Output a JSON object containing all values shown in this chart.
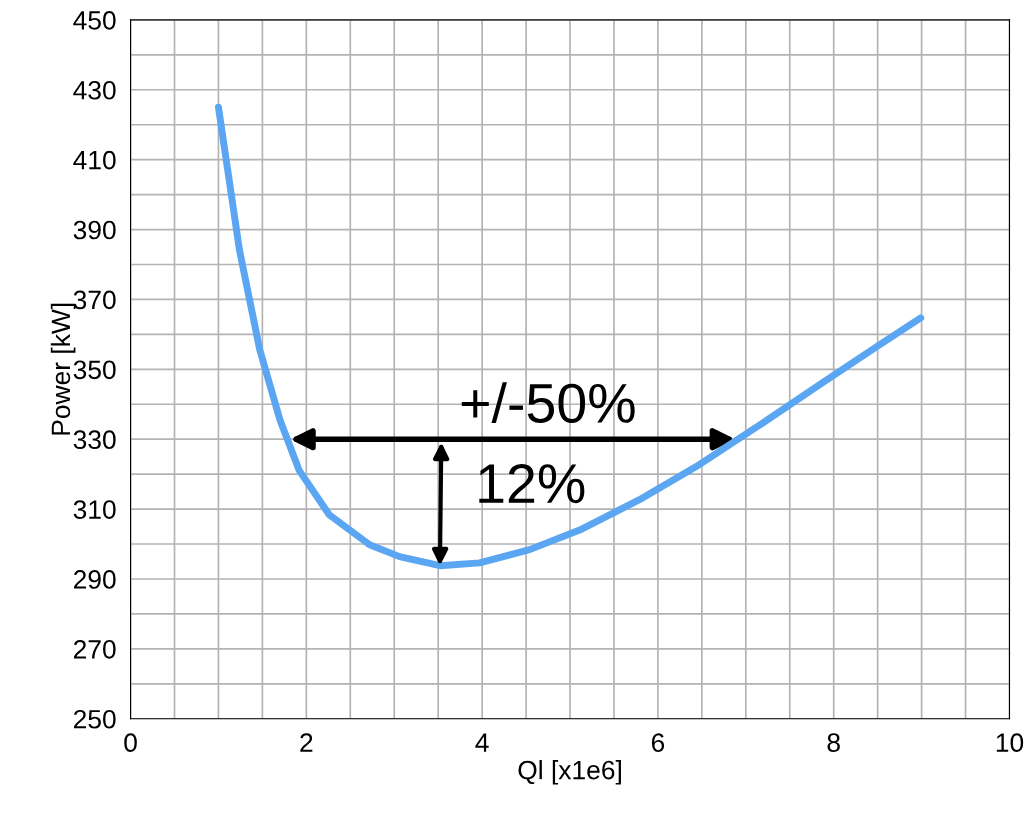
{
  "chart_data": {
    "type": "line",
    "xlabel": "Ql [x1e6]",
    "ylabel": "Power [kW]",
    "x": [
      1.0,
      1.24,
      1.47,
      1.7,
      1.92,
      2.26,
      2.72,
      3.06,
      3.52,
      3.97,
      4.54,
      5.11,
      5.79,
      6.47,
      7.16,
      7.84,
      8.52,
      8.99
    ],
    "series": [
      {
        "color": "#5ba6f2",
        "values": [
          425,
          384,
          355.6,
          335.5,
          321,
          308.4,
          299.8,
          296.4,
          293.8,
          294.6,
          298.4,
          304,
          312.7,
          322.7,
          334.1,
          345.6,
          357,
          364.7
        ]
      }
    ],
    "xlim": [
      0,
      10
    ],
    "ylim": [
      250,
      450
    ],
    "xticks": [
      0,
      {
        "value": 0.5,
        "label": null
      },
      2,
      {
        "value": 1,
        "label": null
      },
      {
        "value": 1.5,
        "label": null
      },
      {
        "value": 2.5,
        "label": null
      },
      {
        "value": 3,
        "label": null
      },
      {
        "value": 3.5,
        "label": null
      },
      4,
      {
        "value": 4.5,
        "label": null
      },
      {
        "value": 5,
        "label": null
      },
      {
        "value": 5.5,
        "label": null
      },
      6,
      {
        "value": 6.5,
        "label": null
      },
      {
        "value": 7,
        "label": null
      },
      {
        "value": 7.5,
        "label": null
      },
      8,
      {
        "value": 8.5,
        "label": null
      },
      {
        "value": 9,
        "label": null
      },
      {
        "value": 9.5,
        "label": null
      },
      10
    ],
    "yticks": [
      250,
      {
        "value": 260,
        "label": null
      },
      270,
      {
        "value": 280,
        "label": null
      },
      290,
      {
        "value": 300,
        "label": null
      },
      310,
      {
        "value": 320,
        "label": null
      },
      330,
      {
        "value": 340,
        "label": null
      },
      350,
      {
        "value": 360,
        "label": null
      },
      370,
      {
        "value": 380,
        "label": null
      },
      390,
      {
        "value": 400,
        "label": null
      },
      410,
      {
        "value": 420,
        "label": null
      },
      430,
      {
        "value": 440,
        "label": null
      },
      450
    ],
    "grid": true,
    "marker": "none",
    "line_style": "solid",
    "annotations": [
      "+/-50%",
      {
        "text": "12%",
        "x": 3.52,
        "y": 293.8
      }
    ]
  }
}
